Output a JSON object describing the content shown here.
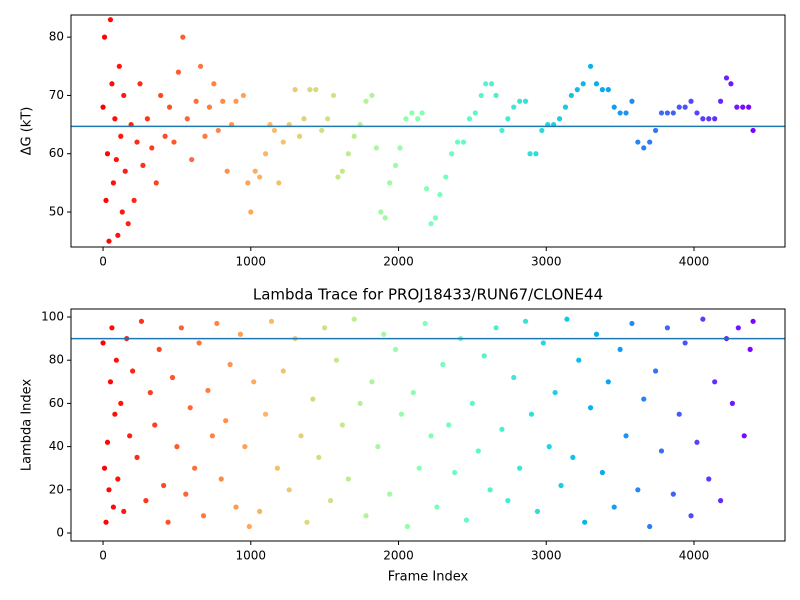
{
  "chart_data": [
    {
      "type": "scatter",
      "ylabel": "ΔG (kT)",
      "colormap": "rainbow_r",
      "hline": 64.7,
      "hline_color": "#1f77b4",
      "xlim": [
        -217,
        4616
      ],
      "ylim": [
        44,
        83.8
      ],
      "xticks": [
        0,
        1000,
        2000,
        3000,
        4000
      ],
      "yticks": [
        50,
        60,
        70,
        80
      ],
      "x": [
        0,
        10,
        20,
        30,
        40,
        50,
        60,
        70,
        80,
        90,
        100,
        110,
        120,
        130,
        140,
        150,
        170,
        190,
        210,
        230,
        250,
        270,
        300,
        330,
        360,
        390,
        420,
        450,
        480,
        510,
        540,
        570,
        600,
        630,
        660,
        690,
        720,
        750,
        780,
        810,
        840,
        870,
        900,
        950,
        980,
        1000,
        1030,
        1060,
        1100,
        1130,
        1160,
        1190,
        1220,
        1260,
        1300,
        1330,
        1360,
        1400,
        1440,
        1480,
        1520,
        1560,
        1590,
        1620,
        1660,
        1700,
        1740,
        1780,
        1820,
        1850,
        1880,
        1910,
        1940,
        1980,
        2010,
        2050,
        2090,
        2130,
        2160,
        2190,
        2220,
        2250,
        2280,
        2320,
        2360,
        2400,
        2440,
        2480,
        2520,
        2560,
        2590,
        2630,
        2660,
        2700,
        2740,
        2780,
        2820,
        2860,
        2890,
        2930,
        2970,
        3010,
        3050,
        3090,
        3130,
        3170,
        3210,
        3250,
        3300,
        3340,
        3380,
        3420,
        3460,
        3500,
        3540,
        3580,
        3620,
        3660,
        3700,
        3740,
        3780,
        3820,
        3860,
        3900,
        3940,
        3980,
        4020,
        4060,
        4100,
        4140,
        4180,
        4220,
        4250,
        4290,
        4330,
        4370,
        4400
      ],
      "values": [
        68,
        80,
        52,
        60,
        45,
        83,
        72,
        55,
        66,
        59,
        46,
        75,
        63,
        50,
        70,
        57,
        48,
        65,
        52,
        62,
        72,
        58,
        66,
        61,
        55,
        70,
        63,
        68,
        62,
        74,
        80,
        66,
        59,
        69,
        75,
        63,
        68,
        72,
        64,
        69,
        57,
        65,
        69,
        70,
        55,
        50,
        57,
        56,
        60,
        65,
        64,
        55,
        62,
        65,
        71,
        63,
        66,
        71,
        71,
        64,
        66,
        70,
        56,
        57,
        60,
        63,
        65,
        69,
        70,
        61,
        50,
        49,
        55,
        58,
        61,
        66,
        67,
        66,
        67,
        54,
        48,
        49,
        53,
        56,
        60,
        62,
        62,
        66,
        67,
        70,
        72,
        72,
        70,
        64,
        66,
        68,
        69,
        69,
        60,
        60,
        64,
        65,
        65,
        66,
        68,
        70,
        71,
        72,
        75,
        72,
        71,
        71,
        68,
        67,
        67,
        69,
        62,
        61,
        62,
        64,
        67,
        67,
        67,
        68,
        68,
        69,
        67,
        66,
        66,
        66,
        69,
        73,
        72,
        68,
        68,
        68,
        64
      ]
    },
    {
      "type": "scatter",
      "title": "Lambda Trace for PROJ18433/RUN67/CLONE44",
      "xlabel": "Frame Index",
      "ylabel": "Lambda Index",
      "colormap": "rainbow_r",
      "hline": 90,
      "hline_color": "#1f77b4",
      "xlim": [
        -217,
        4616
      ],
      "ylim": [
        -3.7,
        103.7
      ],
      "xticks": [
        0,
        1000,
        2000,
        3000,
        4000
      ],
      "yticks": [
        0,
        20,
        40,
        60,
        80,
        100
      ],
      "x": [
        0,
        10,
        20,
        30,
        40,
        50,
        60,
        70,
        80,
        90,
        100,
        120,
        140,
        160,
        180,
        200,
        230,
        260,
        290,
        320,
        350,
        380,
        410,
        440,
        470,
        500,
        530,
        560,
        590,
        620,
        650,
        680,
        710,
        740,
        770,
        800,
        830,
        860,
        900,
        930,
        960,
        990,
        1020,
        1060,
        1100,
        1140,
        1180,
        1220,
        1260,
        1300,
        1340,
        1380,
        1420,
        1460,
        1500,
        1540,
        1580,
        1620,
        1660,
        1700,
        1740,
        1780,
        1820,
        1860,
        1900,
        1940,
        1980,
        2020,
        2060,
        2100,
        2140,
        2180,
        2220,
        2260,
        2300,
        2340,
        2380,
        2420,
        2460,
        2500,
        2540,
        2580,
        2620,
        2660,
        2700,
        2740,
        2780,
        2820,
        2860,
        2900,
        2940,
        2980,
        3020,
        3060,
        3100,
        3140,
        3180,
        3220,
        3260,
        3300,
        3340,
        3380,
        3420,
        3460,
        3500,
        3540,
        3580,
        3620,
        3660,
        3700,
        3740,
        3780,
        3820,
        3860,
        3900,
        3940,
        3980,
        4020,
        4060,
        4100,
        4140,
        4180,
        4220,
        4260,
        4300,
        4340,
        4380,
        4400
      ],
      "values": [
        88,
        30,
        5,
        42,
        20,
        70,
        95,
        12,
        55,
        80,
        25,
        60,
        10,
        90,
        45,
        75,
        35,
        98,
        15,
        65,
        50,
        85,
        22,
        5,
        72,
        40,
        95,
        18,
        58,
        30,
        88,
        8,
        66,
        45,
        97,
        25,
        52,
        78,
        12,
        92,
        40,
        3,
        70,
        10,
        55,
        98,
        30,
        75,
        20,
        90,
        45,
        5,
        62,
        35,
        95,
        15,
        80,
        50,
        25,
        99,
        60,
        8,
        70,
        40,
        92,
        18,
        85,
        55,
        3,
        65,
        30,
        97,
        45,
        12,
        78,
        50,
        28,
        90,
        6,
        60,
        38,
        82,
        20,
        95,
        48,
        15,
        72,
        30,
        98,
        55,
        10,
        88,
        40,
        65,
        22,
        99,
        35,
        80,
        5,
        58,
        92,
        28,
        70,
        12,
        85,
        45,
        97,
        20,
        62,
        3,
        75,
        38,
        95,
        18,
        55,
        88,
        8,
        42,
        99,
        25,
        70,
        15,
        90,
        60,
        95,
        45,
        85,
        98
      ]
    }
  ]
}
